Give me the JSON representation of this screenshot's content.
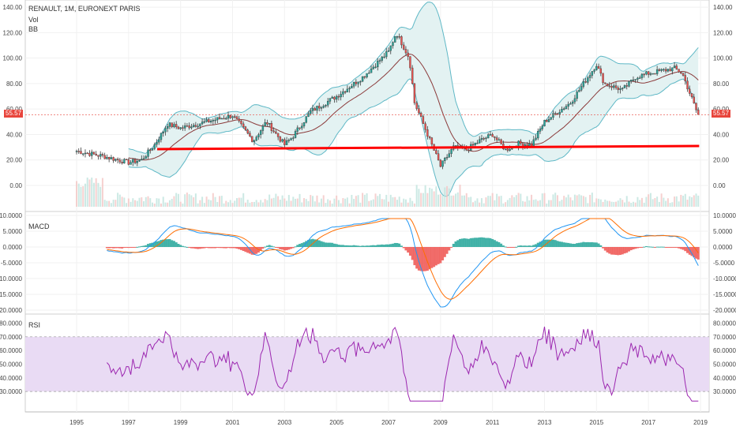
{
  "header": {
    "symbol_title": "RENAULT, 1M, EURONEXT PARIS",
    "indicator_vol": "Vol",
    "indicator_bb": "BB"
  },
  "panes": {
    "macd_label": "MACD",
    "rsi_label": "RSI"
  },
  "last_price": "55.57",
  "colors": {
    "up": "#26a69a",
    "down": "#ef5350",
    "support_line": "#ff0000",
    "bb_band": "#5fb8c6",
    "bb_fill": "#e3f2f2",
    "basis": "#8b3a3a",
    "macd_line": "#2196f3",
    "signal_line": "#ff6d00",
    "rsi_line": "#9c27b0",
    "rsi_band": "#e9dbf4"
  },
  "chart_data": [
    {
      "type": "line",
      "title": "RENAULT, 1M, EURONEXT PARIS",
      "x_ticks": [
        "1995",
        "1997",
        "1999",
        "2001",
        "2003",
        "2005",
        "2007",
        "2009",
        "2011",
        "2013",
        "2015",
        "2017",
        "2019"
      ],
      "y_ticks": [
        "0.00",
        "20.00",
        "40.00",
        "60.00",
        "80.00",
        "100.00",
        "120.00",
        "140.00"
      ],
      "ylim": [
        -15,
        140
      ],
      "series": [
        {
          "name": "",
          "x": [
            1995,
            1996,
            1997,
            1997.5,
            1998,
            1998.5,
            1999,
            2000,
            2001,
            2001.8,
            2002.3,
            2003,
            2003.3,
            2004,
            2005,
            2006,
            2007,
            2007.3,
            2007.8,
            2008,
            2008.5,
            2009,
            2009.5,
            2010,
            2010.5,
            2011,
            2011.5,
            2012,
            2012.5,
            2013,
            2014,
            2015,
            2015.3,
            2016,
            2016.5,
            2017,
            2018,
            2018.3,
            2018.9
          ],
          "values": [
            27,
            23,
            18,
            20,
            32,
            48,
            45,
            50,
            55,
            35,
            50,
            32,
            38,
            58,
            70,
            85,
            105,
            120,
            100,
            65,
            40,
            15,
            30,
            28,
            35,
            40,
            28,
            33,
            32,
            50,
            65,
            95,
            80,
            75,
            85,
            88,
            92,
            88,
            55.57
          ]
        }
      ],
      "annotations": [
        "support line at ~28",
        "last price 55.57"
      ]
    },
    {
      "type": "line",
      "title": "MACD",
      "y_ticks": [
        "10.0000",
        "5.0000",
        "0.0000",
        "-5.0000",
        "-10.0000",
        "-15.0000",
        "-20.0000"
      ],
      "ylim": [
        -20,
        10
      ]
    },
    {
      "type": "line",
      "title": "RSI",
      "y_ticks": [
        "80.0000",
        "70.0000",
        "60.0000",
        "50.0000",
        "40.0000",
        "30.0000"
      ],
      "ylim": [
        22,
        82
      ],
      "bands": [
        30,
        70
      ]
    }
  ]
}
